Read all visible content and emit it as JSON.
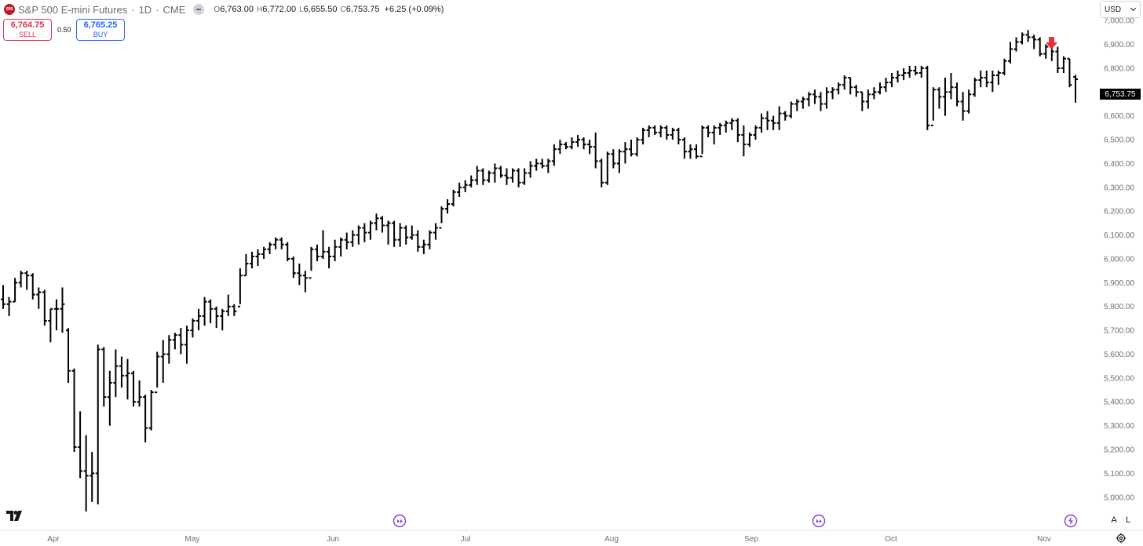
{
  "header": {
    "logo_text": "500",
    "symbol": "S&P 500 E-mini Futures",
    "interval": "1D",
    "exchange": "CME",
    "open_key": "O",
    "open": "6,763.00",
    "high_key": "H",
    "high": "6,772.00",
    "low_key": "L",
    "low": "6,655.50",
    "close_key": "C",
    "close": "6,753.75",
    "change": "+6.25 (+0.09%)"
  },
  "trade": {
    "sell_price": "6,764.75",
    "sell_label": "SELL",
    "spread": "0.50",
    "buy_price": "6,765.25",
    "buy_label": "BUY"
  },
  "currency": "USD",
  "last_price_label": "6,753.75",
  "scale_buttons": {
    "auto": "A",
    "log": "L"
  },
  "colors": {
    "bars": "#000000",
    "sell": "#e0314b",
    "buy": "#2962ff",
    "marker": "#e5323a",
    "event": "#7e3fd6"
  },
  "chart_data": {
    "type": "ohlc",
    "y_axis_ticks": [
      "5,000.00",
      "5,100.00",
      "5,200.00",
      "5,300.00",
      "5,400.00",
      "5,500.00",
      "5,600.00",
      "5,700.00",
      "5,800.00",
      "5,900.00",
      "6,000.00",
      "6,100.00",
      "6,200.00",
      "6,300.00",
      "6,400.00",
      "6,500.00",
      "6,600.00",
      "6,700.00",
      "6,800.00",
      "6,900.00",
      "7,000.00"
    ],
    "ylim": [
      4940,
      7040
    ],
    "x_axis_labels": [
      "Apr",
      "May",
      "Jun",
      "Jul",
      "Aug",
      "Sep",
      "Oct",
      "Nov"
    ],
    "bar_color": "#000000",
    "bars": [
      [
        5830,
        5890,
        5790,
        5810
      ],
      [
        5810,
        5840,
        5760,
        5820
      ],
      [
        5820,
        5920,
        5820,
        5900
      ],
      [
        5900,
        5950,
        5880,
        5940
      ],
      [
        5940,
        5950,
        5870,
        5930
      ],
      [
        5930,
        5940,
        5830,
        5850
      ],
      [
        5850,
        5880,
        5790,
        5860
      ],
      [
        5860,
        5870,
        5720,
        5740
      ],
      [
        5740,
        5790,
        5650,
        5790
      ],
      [
        5790,
        5830,
        5700,
        5790
      ],
      [
        5790,
        5880,
        5690,
        5810
      ],
      [
        5700,
        5710,
        5480,
        5530
      ],
      [
        5530,
        5540,
        5190,
        5210
      ],
      [
        5210,
        5360,
        5080,
        5110
      ],
      [
        5110,
        5260,
        4940,
        5090
      ],
      [
        5090,
        5190,
        4980,
        5100
      ],
      [
        5100,
        5640,
        4970,
        5620
      ],
      [
        5620,
        5630,
        5380,
        5420
      ],
      [
        5420,
        5530,
        5300,
        5480
      ],
      [
        5480,
        5620,
        5420,
        5550
      ],
      [
        5550,
        5590,
        5460,
        5510
      ],
      [
        5510,
        5580,
        5410,
        5520
      ],
      [
        5520,
        5530,
        5380,
        5400
      ],
      [
        5400,
        5490,
        5380,
        5420
      ],
      [
        5420,
        5430,
        5230,
        5290
      ],
      [
        5290,
        5450,
        5280,
        5440
      ],
      [
        5440,
        5610,
        5460,
        5590
      ],
      [
        5590,
        5660,
        5480,
        5600
      ],
      [
        5600,
        5680,
        5560,
        5660
      ],
      [
        5660,
        5690,
        5620,
        5680
      ],
      [
        5680,
        5710,
        5600,
        5640
      ],
      [
        5640,
        5720,
        5560,
        5700
      ],
      [
        5700,
        5750,
        5670,
        5740
      ],
      [
        5740,
        5790,
        5700,
        5760
      ],
      [
        5760,
        5840,
        5720,
        5820
      ],
      [
        5820,
        5830,
        5730,
        5790
      ],
      [
        5790,
        5800,
        5710,
        5760
      ],
      [
        5760,
        5790,
        5700,
        5780
      ],
      [
        5780,
        5850,
        5760,
        5800
      ],
      [
        5800,
        5810,
        5760,
        5780
      ],
      [
        5800,
        5960,
        5810,
        5930
      ],
      [
        5930,
        6020,
        5930,
        5980
      ],
      [
        5980,
        6030,
        5960,
        6010
      ],
      [
        6010,
        6040,
        5970,
        6020
      ],
      [
        6020,
        6050,
        6000,
        6040
      ],
      [
        6040,
        6070,
        6020,
        6060
      ],
      [
        6060,
        6090,
        6040,
        6080
      ],
      [
        6080,
        6090,
        6040,
        6060
      ],
      [
        6060,
        6070,
        5990,
        6000
      ],
      [
        6000,
        6010,
        5920,
        5940
      ],
      [
        5940,
        5980,
        5890,
        5930
      ],
      [
        5930,
        5950,
        5860,
        5920
      ],
      [
        5920,
        6050,
        5950,
        6040
      ],
      [
        6040,
        6060,
        5990,
        6010
      ],
      [
        6010,
        6120,
        6000,
        6030
      ],
      [
        6030,
        6050,
        5960,
        6010
      ],
      [
        6010,
        6080,
        5990,
        6050
      ],
      [
        6050,
        6090,
        6010,
        6080
      ],
      [
        6080,
        6110,
        6040,
        6070
      ],
      [
        6070,
        6120,
        6050,
        6100
      ],
      [
        6100,
        6140,
        6060,
        6130
      ],
      [
        6130,
        6150,
        6070,
        6110
      ],
      [
        6110,
        6160,
        6080,
        6150
      ],
      [
        6150,
        6190,
        6120,
        6170
      ],
      [
        6170,
        6180,
        6110,
        6140
      ],
      [
        6140,
        6160,
        6060,
        6150
      ],
      [
        6150,
        6160,
        6050,
        6080
      ],
      [
        6080,
        6150,
        6050,
        6130
      ],
      [
        6130,
        6140,
        6060,
        6090
      ],
      [
        6090,
        6140,
        6080,
        6100
      ],
      [
        6100,
        6120,
        6030,
        6050
      ],
      [
        6050,
        6080,
        6020,
        6060
      ],
      [
        6060,
        6120,
        6040,
        6110
      ],
      [
        6110,
        6150,
        6080,
        6130
      ],
      [
        6130,
        6220,
        6150,
        6210
      ],
      [
        6210,
        6250,
        6190,
        6230
      ],
      [
        6230,
        6290,
        6220,
        6280
      ],
      [
        6280,
        6320,
        6260,
        6300
      ],
      [
        6300,
        6330,
        6280,
        6310
      ],
      [
        6310,
        6350,
        6300,
        6330
      ],
      [
        6330,
        6390,
        6310,
        6370
      ],
      [
        6370,
        6380,
        6310,
        6330
      ],
      [
        6330,
        6370,
        6320,
        6360
      ],
      [
        6360,
        6400,
        6320,
        6380
      ],
      [
        6380,
        6390,
        6340,
        6350
      ],
      [
        6350,
        6380,
        6310,
        6340
      ],
      [
        6340,
        6380,
        6320,
        6370
      ],
      [
        6370,
        6380,
        6300,
        6320
      ],
      [
        6320,
        6380,
        6310,
        6360
      ],
      [
        6360,
        6410,
        6340,
        6390
      ],
      [
        6390,
        6420,
        6370,
        6400
      ],
      [
        6400,
        6420,
        6380,
        6390
      ],
      [
        6390,
        6420,
        6360,
        6410
      ],
      [
        6410,
        6480,
        6390,
        6460
      ],
      [
        6460,
        6500,
        6440,
        6480
      ],
      [
        6480,
        6490,
        6460,
        6470
      ],
      [
        6470,
        6510,
        6460,
        6490
      ],
      [
        6490,
        6520,
        6470,
        6500
      ],
      [
        6500,
        6510,
        6460,
        6480
      ],
      [
        6480,
        6500,
        6440,
        6470
      ],
      [
        6470,
        6530,
        6380,
        6410
      ],
      [
        6410,
        6420,
        6300,
        6320
      ],
      [
        6320,
        6450,
        6310,
        6440
      ],
      [
        6440,
        6460,
        6380,
        6400
      ],
      [
        6400,
        6460,
        6360,
        6450
      ],
      [
        6450,
        6490,
        6400,
        6460
      ],
      [
        6460,
        6500,
        6430,
        6440
      ],
      [
        6440,
        6510,
        6430,
        6500
      ],
      [
        6500,
        6550,
        6480,
        6540
      ],
      [
        6540,
        6560,
        6510,
        6550
      ],
      [
        6550,
        6560,
        6520,
        6530
      ],
      [
        6530,
        6560,
        6510,
        6550
      ],
      [
        6550,
        6560,
        6500,
        6520
      ],
      [
        6520,
        6550,
        6500,
        6540
      ],
      [
        6540,
        6550,
        6480,
        6500
      ],
      [
        6500,
        6510,
        6420,
        6450
      ],
      [
        6450,
        6480,
        6420,
        6460
      ],
      [
        6460,
        6480,
        6420,
        6430
      ],
      [
        6430,
        6560,
        6440,
        6550
      ],
      [
        6550,
        6560,
        6510,
        6530
      ],
      [
        6530,
        6560,
        6480,
        6550
      ],
      [
        6550,
        6570,
        6520,
        6560
      ],
      [
        6560,
        6580,
        6530,
        6570
      ],
      [
        6570,
        6590,
        6540,
        6580
      ],
      [
        6580,
        6590,
        6490,
        6520
      ],
      [
        6520,
        6560,
        6430,
        6480
      ],
      [
        6480,
        6530,
        6470,
        6520
      ],
      [
        6520,
        6560,
        6500,
        6550
      ],
      [
        6550,
        6610,
        6530,
        6590
      ],
      [
        6590,
        6620,
        6540,
        6580
      ],
      [
        6580,
        6600,
        6540,
        6570
      ],
      [
        6570,
        6640,
        6540,
        6610
      ],
      [
        6610,
        6620,
        6580,
        6600
      ],
      [
        6600,
        6660,
        6590,
        6650
      ],
      [
        6650,
        6670,
        6620,
        6660
      ],
      [
        6660,
        6680,
        6630,
        6670
      ],
      [
        6670,
        6700,
        6640,
        6690
      ],
      [
        6690,
        6710,
        6650,
        6680
      ],
      [
        6680,
        6700,
        6620,
        6650
      ],
      [
        6650,
        6720,
        6630,
        6700
      ],
      [
        6700,
        6720,
        6670,
        6710
      ],
      [
        6710,
        6740,
        6690,
        6730
      ],
      [
        6730,
        6770,
        6710,
        6760
      ],
      [
        6760,
        6760,
        6690,
        6720
      ],
      [
        6720,
        6730,
        6680,
        6700
      ],
      [
        6700,
        6700,
        6620,
        6660
      ],
      [
        6660,
        6710,
        6630,
        6690
      ],
      [
        6690,
        6720,
        6670,
        6700
      ],
      [
        6700,
        6740,
        6690,
        6720
      ],
      [
        6720,
        6760,
        6700,
        6740
      ],
      [
        6740,
        6780,
        6720,
        6760
      ],
      [
        6760,
        6790,
        6740,
        6770
      ],
      [
        6770,
        6800,
        6750,
        6780
      ],
      [
        6780,
        6810,
        6760,
        6790
      ],
      [
        6790,
        6810,
        6770,
        6780
      ],
      [
        6780,
        6810,
        6760,
        6800
      ],
      [
        6800,
        6810,
        6540,
        6560
      ],
      [
        6560,
        6720,
        6580,
        6710
      ],
      [
        6710,
        6720,
        6630,
        6680
      ],
      [
        6680,
        6760,
        6600,
        6700
      ],
      [
        6700,
        6780,
        6670,
        6720
      ],
      [
        6720,
        6740,
        6640,
        6660
      ],
      [
        6660,
        6700,
        6580,
        6620
      ],
      [
        6620,
        6710,
        6610,
        6690
      ],
      [
        6690,
        6760,
        6680,
        6750
      ],
      [
        6750,
        6790,
        6720,
        6760
      ],
      [
        6760,
        6790,
        6720,
        6740
      ],
      [
        6740,
        6790,
        6700,
        6770
      ],
      [
        6770,
        6790,
        6730,
        6780
      ],
      [
        6780,
        6840,
        6770,
        6830
      ],
      [
        6830,
        6910,
        6820,
        6880
      ],
      [
        6880,
        6930,
        6870,
        6910
      ],
      [
        6910,
        6950,
        6900,
        6940
      ],
      [
        6940,
        6960,
        6910,
        6930
      ],
      [
        6930,
        6940,
        6880,
        6920
      ],
      [
        6920,
        6930,
        6850,
        6860
      ],
      [
        6860,
        6900,
        6840,
        6890
      ],
      [
        6890,
        6900,
        6830,
        6870
      ],
      [
        6870,
        6890,
        6780,
        6800
      ],
      [
        6800,
        6850,
        6780,
        6840
      ],
      [
        6840,
        6840,
        6720,
        6730
      ],
      [
        6763,
        6772,
        6655.5,
        6753.75
      ]
    ],
    "marker": "sell-down-arrow"
  }
}
